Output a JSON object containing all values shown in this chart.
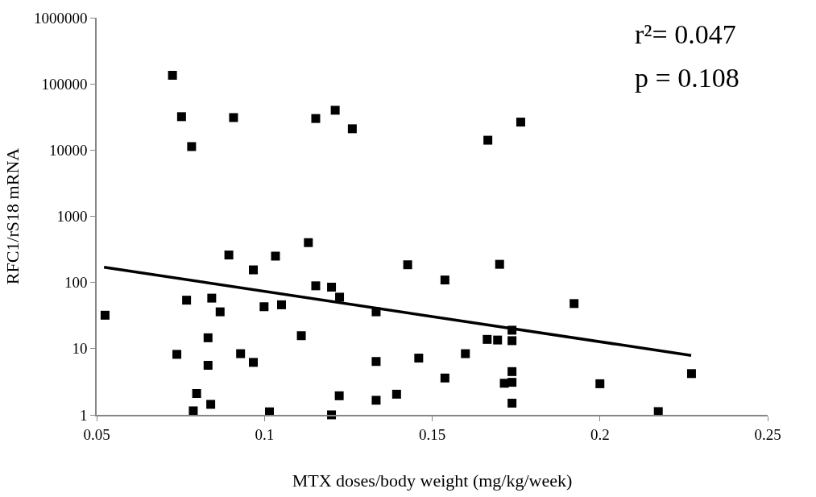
{
  "chart_data": {
    "type": "scatter",
    "xlabel": "MTX doses/body weight (mg/kg/week)",
    "ylabel": "RFC1/rS18 mRNA",
    "annotations": [
      "r²= 0.047",
      "p = 0.108"
    ],
    "log": "y",
    "marker": "square",
    "xlim": [
      0.05,
      0.25
    ],
    "xticks": [
      0.05,
      0.1,
      0.15,
      0.2,
      0.25
    ],
    "ylim": [
      1,
      1000000
    ],
    "yticks": [
      1,
      10,
      100,
      1000,
      10000,
      100000,
      1000000
    ],
    "series": [
      {
        "color": "#000000",
        "x": [
          0.0726,
          0.0753,
          0.0783,
          0.0908,
          0.1153,
          0.1211,
          0.1262,
          0.1131,
          0.0894,
          0.1033,
          0.0967,
          0.1427,
          0.0525,
          0.0768,
          0.0843,
          0.0868,
          0.0999,
          0.1051,
          0.1153,
          0.12,
          0.1224,
          0.1333,
          0.111,
          0.0832,
          0.0739,
          0.0929,
          0.0832,
          0.0967,
          0.1333,
          0.146,
          0.0798,
          0.084,
          0.0788,
          0.1015,
          0.12,
          0.1223,
          0.1333,
          0.1394,
          0.1764,
          0.1666,
          0.1701,
          0.1538,
          0.1923,
          0.1738,
          0.1664,
          0.1695,
          0.1738,
          0.1599,
          0.1538,
          0.1738,
          0.1738,
          0.1715,
          0.1738,
          0.2,
          0.2273,
          0.2174
        ],
        "values": [
          135000,
          32000,
          11300,
          31000,
          30000,
          40000,
          21000,
          400,
          260,
          250,
          155,
          185,
          32,
          54,
          58,
          36,
          43,
          46,
          89,
          85,
          60,
          36,
          15.7,
          14.6,
          8.2,
          8.4,
          5.6,
          6.2,
          6.4,
          7.2,
          2.1,
          1.44,
          1.15,
          1.11,
          1.0,
          1.94,
          1.66,
          2.05,
          26500,
          14100,
          188,
          109,
          48,
          19,
          13.8,
          13.5,
          13.2,
          8.4,
          3.6,
          4.5,
          3.1,
          3.0,
          1.5,
          2.95,
          4.2,
          1.12
        ]
      },
      {
        "type": "line",
        "color": "#000000",
        "marker": "none",
        "x": [
          0.0522,
          0.2272
        ],
        "values": [
          170,
          7.9
        ]
      }
    ]
  }
}
